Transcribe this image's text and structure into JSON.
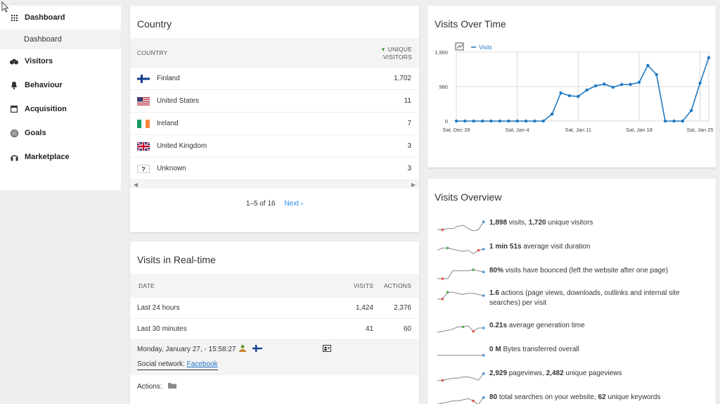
{
  "sidebar": {
    "items": [
      {
        "label": "Dashboard",
        "icon": "grid-icon"
      },
      {
        "label": "Visitors",
        "icon": "binoculars-icon"
      },
      {
        "label": "Behaviour",
        "icon": "bell-icon"
      },
      {
        "label": "Acquisition",
        "icon": "window-icon"
      },
      {
        "label": "Goals",
        "icon": "target-icon"
      },
      {
        "label": "Marketplace",
        "icon": "headset-icon"
      }
    ],
    "sub": "Dashboard"
  },
  "country": {
    "title": "Country",
    "col_country": "COUNTRY",
    "col_visitors_1": "UNIQUE",
    "col_visitors_2": "VISITORS",
    "rows": [
      {
        "name": "Finland",
        "value": "1,702",
        "flag": "fi"
      },
      {
        "name": "United States",
        "value": "11",
        "flag": "us"
      },
      {
        "name": "Ireland",
        "value": "7",
        "flag": "ie"
      },
      {
        "name": "United Kingdom",
        "value": "3",
        "flag": "gb"
      },
      {
        "name": "Unknown",
        "value": "3",
        "flag": "unknown"
      }
    ],
    "pager": "1–5 of 16",
    "next": "Next ›"
  },
  "realtime": {
    "title": "Visits in Real-time",
    "col_date": "DATE",
    "col_visits": "VISITS",
    "col_actions": "ACTIONS",
    "rows": [
      {
        "label": "Last 24 hours",
        "visits": "1,424",
        "actions": "2,376"
      },
      {
        "label": "Last 30 minutes",
        "visits": "41",
        "actions": "60"
      }
    ],
    "log_time": "Monday, January 27, - 15:58:27",
    "log_social_label": "Social network:",
    "log_social_link": "Facebook",
    "actions_label": "Actions:"
  },
  "visits_over_time": {
    "title": "Visits Over Time",
    "legend": "Visits"
  },
  "chart_data": {
    "type": "line",
    "title": "Visits Over Time",
    "series": [
      {
        "name": "Visits",
        "values": [
          0,
          0,
          0,
          0,
          0,
          0,
          0,
          0,
          0,
          0,
          0,
          200,
          800,
          720,
          700,
          880,
          1000,
          1050,
          960,
          1040,
          1040,
          1100,
          1580,
          1320,
          0,
          0,
          0,
          300,
          1080,
          1800
        ]
      }
    ],
    "ylim": [
      0,
      1960
    ],
    "yticks": [
      "1,960",
      "980",
      "0"
    ],
    "xticks": [
      {
        "label": "Sat, Dec 28",
        "i": 0
      },
      {
        "label": "Sat, Jan 4",
        "i": 7
      },
      {
        "label": "Sat, Jan 11",
        "i": 14
      },
      {
        "label": "Sat, Jan 18",
        "i": 21
      },
      {
        "label": "Sat, Jan 25",
        "i": 28
      }
    ],
    "color": "#1f78c1"
  },
  "overview": {
    "title": "Visits Overview",
    "rows": [
      {
        "bold": "1,898",
        "text": " visits, ",
        "bold2": "1,720",
        "text2": " unique visitors"
      },
      {
        "bold": "1 min 51s",
        "text": " average visit duration",
        "bold2": "",
        "text2": ""
      },
      {
        "bold": "80%",
        "text": " visits have bounced (left the website after one page)",
        "bold2": "",
        "text2": ""
      },
      {
        "bold": "1.6",
        "text": " actions (page views, downloads, outlinks and internal site searches) per visit",
        "bold2": "",
        "text2": ""
      },
      {
        "bold": "0.21s",
        "text": " average generation time",
        "bold2": "",
        "text2": ""
      },
      {
        "bold": "0 M",
        "text": " Bytes transferred overall",
        "bold2": "",
        "text2": ""
      },
      {
        "bold": "2,929",
        "text": " pageviews, ",
        "bold2": "2,482",
        "text2": " unique pageviews"
      },
      {
        "bold": "80",
        "text": " total searches on your website, ",
        "bold2": "62",
        "text2": " unique keywords"
      }
    ]
  }
}
